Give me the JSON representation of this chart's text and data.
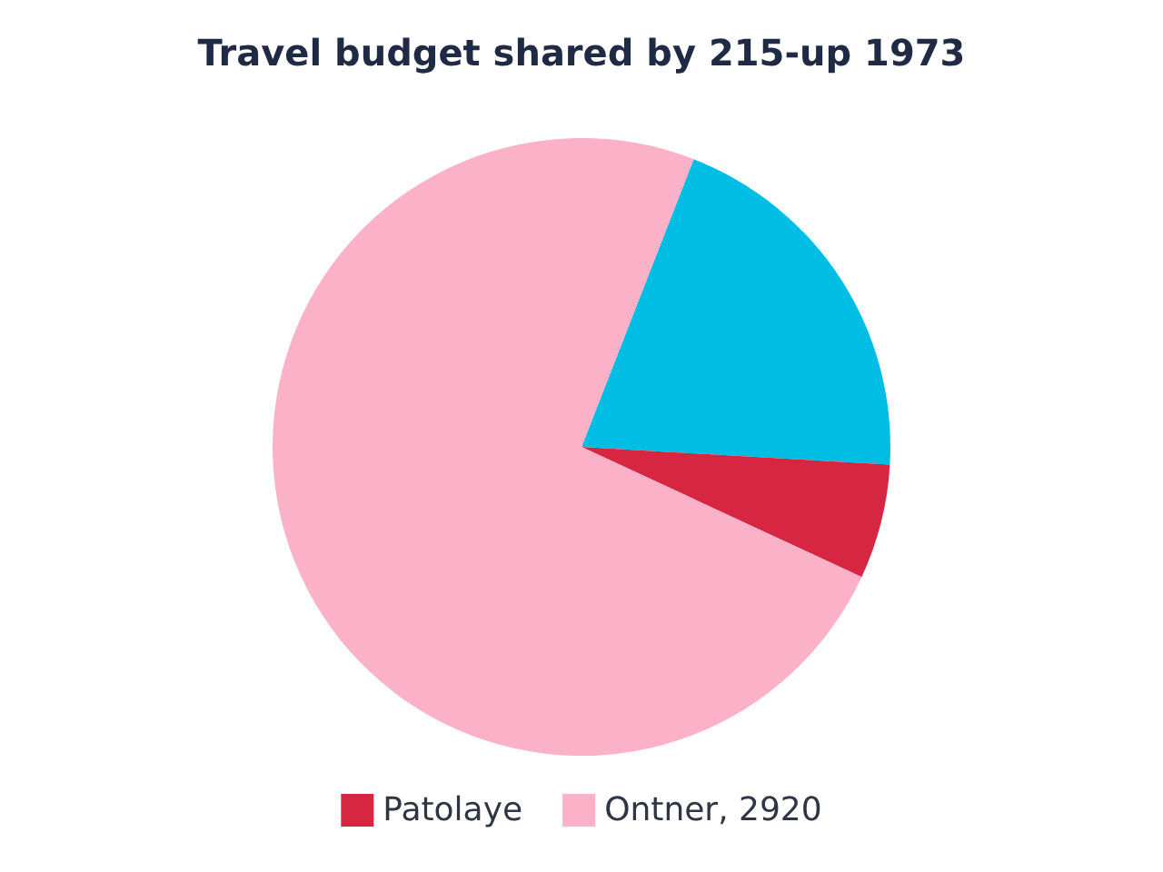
{
  "chart_data": {
    "type": "pie",
    "title": "Travel budget shared by 215-up 1973",
    "categories": [
      null,
      "Patolaye",
      "Ontner, 2920"
    ],
    "values": [
      20,
      6,
      74
    ],
    "colors": [
      "#00bde3",
      "#d62641",
      "#fbb1c8"
    ],
    "legend": "bottom"
  }
}
